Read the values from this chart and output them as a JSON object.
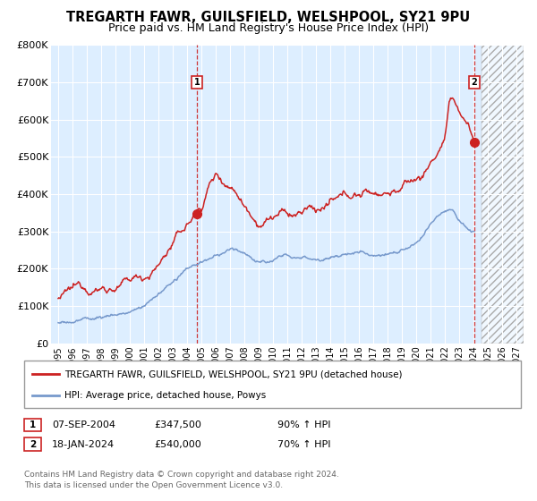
{
  "title": "TREGARTH FAWR, GUILSFIELD, WELSHPOOL, SY21 9PU",
  "subtitle": "Price paid vs. HM Land Registry's House Price Index (HPI)",
  "title_fontsize": 10.5,
  "subtitle_fontsize": 9,
  "bg_color": "#ddeeff",
  "grid_color": "#ffffff",
  "red_line_color": "#cc2222",
  "blue_line_color": "#7799cc",
  "ylim": [
    0,
    800000
  ],
  "yticks": [
    0,
    100000,
    200000,
    300000,
    400000,
    500000,
    600000,
    700000,
    800000
  ],
  "ytick_labels": [
    "£0",
    "£100K",
    "£200K",
    "£300K",
    "£400K",
    "£500K",
    "£600K",
    "£700K",
    "£800K"
  ],
  "xlim_start": 1994.5,
  "xlim_end": 2027.5,
  "xtick_years": [
    1995,
    1996,
    1997,
    1998,
    1999,
    2000,
    2001,
    2002,
    2003,
    2004,
    2005,
    2006,
    2007,
    2008,
    2009,
    2010,
    2011,
    2012,
    2013,
    2014,
    2015,
    2016,
    2017,
    2018,
    2019,
    2020,
    2021,
    2022,
    2023,
    2024,
    2025,
    2026,
    2027
  ],
  "sale1_x": 2004.68,
  "sale1_y": 347500,
  "sale1_label": "1",
  "sale2_x": 2024.05,
  "sale2_y": 540000,
  "sale2_label": "2",
  "legend_red_label": "TREGARTH FAWR, GUILSFIELD, WELSHPOOL, SY21 9PU (detached house)",
  "legend_blue_label": "HPI: Average price, detached house, Powys",
  "table_row1": [
    "1",
    "07-SEP-2004",
    "£347,500",
    "90% ↑ HPI"
  ],
  "table_row2": [
    "2",
    "18-JAN-2024",
    "£540,000",
    "70% ↑ HPI"
  ],
  "footer": "Contains HM Land Registry data © Crown copyright and database right 2024.\nThis data is licensed under the Open Government Licence v3.0.",
  "hatch_start": 2024.55
}
